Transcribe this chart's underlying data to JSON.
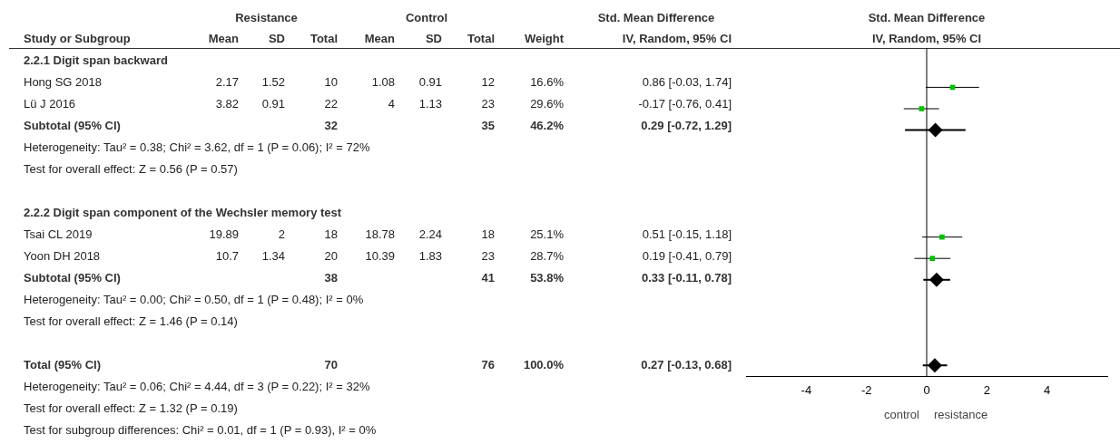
{
  "chart_data": [
    {
      "type": "other",
      "annotations": [
        "Resistance",
        "Control",
        "Std. Mean Difference"
      ],
      "categories": [
        "Study or Subgroup",
        "Mean",
        "SD",
        "Total",
        "Mean",
        "SD",
        "Total",
        "Weight",
        "IV, Random, 95% CI"
      ],
      "y_categories": [
        "2.2.1 Digit span backward",
        "Hong SG 2018",
        "Lü J 2016",
        "Subtotal (95% CI)",
        "Heterogeneity: Tau² = 0.38; Chi² = 3.62, df = 1 (P = 0.06); I² = 72%",
        "Test for overall effect: Z = 0.56 (P = 0.57)",
        null,
        "2.2.2 Digit span component of the Wechsler memory test",
        "Tsai CL 2019",
        "Yoon DH 2018",
        "Subtotal (95% CI)",
        "Heterogeneity: Tau² = 0.00; Chi² = 0.50, df = 1 (P = 0.48); I² = 0%",
        "Test for overall effect: Z = 1.46 (P = 0.14)",
        null,
        "Total (95% CI)",
        "Heterogeneity: Tau² = 0.06; Chi² = 4.44, df = 3 (P = 0.22); I² = 32%",
        "Test for overall effect: Z = 1.32 (P = 0.19)",
        "Test for subgroup differences: Chi² = 0.01, df = 1 (P = 0.93), I² = 0%"
      ],
      "cell_labels": [
        [
          null,
          null,
          null,
          null,
          null,
          null,
          null,
          null
        ],
        [
          "2.17",
          "1.52",
          "10",
          "1.08",
          "0.91",
          "12",
          "16.6%",
          "0.86 [-0.03, 1.74]"
        ],
        [
          "3.82",
          "0.91",
          "22",
          "4",
          "1.13",
          "23",
          "29.6%",
          "-0.17 [-0.76, 0.41]"
        ],
        [
          null,
          null,
          "32",
          null,
          null,
          "35",
          "46.2%",
          "0.29 [-0.72, 1.29]"
        ],
        [
          null,
          null,
          null,
          null,
          null,
          null,
          null,
          null
        ],
        [
          null,
          null,
          null,
          null,
          null,
          null,
          null,
          null
        ],
        [
          null,
          null,
          null,
          null,
          null,
          null,
          null,
          null
        ],
        [
          null,
          null,
          null,
          null,
          null,
          null,
          null,
          null
        ],
        [
          "19.89",
          "2",
          "18",
          "18.78",
          "2.24",
          "18",
          "25.1%",
          "0.51 [-0.15, 1.18]"
        ],
        [
          "10.7",
          "1.34",
          "20",
          "10.39",
          "1.83",
          "23",
          "28.7%",
          "0.19 [-0.41, 0.79]"
        ],
        [
          null,
          null,
          "38",
          null,
          null,
          "41",
          "53.8%",
          "0.33 [-0.11, 0.78]"
        ],
        [
          null,
          null,
          null,
          null,
          null,
          null,
          null,
          null
        ],
        [
          null,
          null,
          null,
          null,
          null,
          null,
          null,
          null
        ],
        [
          null,
          null,
          null,
          null,
          null,
          null,
          null,
          null
        ],
        [
          null,
          null,
          "70",
          null,
          null,
          "76",
          "100.0%",
          "0.27 [-0.13, 0.68]"
        ],
        [
          null,
          null,
          null,
          null,
          null,
          null,
          null,
          null
        ],
        [
          null,
          null,
          null,
          null,
          null,
          null,
          null,
          null
        ],
        [
          null,
          null,
          null,
          null,
          null,
          null,
          null,
          null
        ]
      ]
    },
    {
      "type": "scatter",
      "title": "Std. Mean Difference",
      "subtitle": "IV, Random, 95% CI",
      "orientation": "horizontal",
      "categories": [
        null,
        null,
        null,
        null,
        null,
        null,
        null,
        null,
        null,
        null,
        null,
        null,
        null,
        null,
        null
      ],
      "series": [
        {
          "color": "#00c000",
          "marker": "square",
          "values": [
            null,
            0.86,
            -0.17,
            null,
            null,
            null,
            null,
            null,
            0.51,
            0.19,
            null,
            null,
            null,
            null,
            null
          ],
          "errors": [
            null,
            [
              -0.03,
              1.74
            ],
            [
              -0.76,
              0.41
            ],
            null,
            null,
            null,
            null,
            null,
            [
              -0.15,
              1.18
            ],
            [
              -0.41,
              0.79
            ],
            null,
            null,
            null,
            null,
            null
          ]
        },
        {
          "color": "#000000",
          "marker": "diamond",
          "values": [
            null,
            null,
            null,
            0.29,
            null,
            null,
            null,
            null,
            null,
            null,
            0.33,
            null,
            null,
            null,
            0.27
          ],
          "errors": [
            null,
            null,
            null,
            [
              -0.72,
              1.29
            ],
            null,
            null,
            null,
            null,
            null,
            null,
            [
              -0.11,
              0.78
            ],
            null,
            null,
            null,
            [
              -0.13,
              0.68
            ]
          ]
        }
      ],
      "xlim": [
        -6,
        6
      ],
      "xticks": [
        -4,
        -2,
        0,
        2,
        4
      ],
      "ref_lines": [
        {
          "axis": "x",
          "value": 0,
          "color": "#000000"
        }
      ],
      "annotations": [
        "control",
        "resistance"
      ],
      "tick_labels": "x"
    }
  ]
}
